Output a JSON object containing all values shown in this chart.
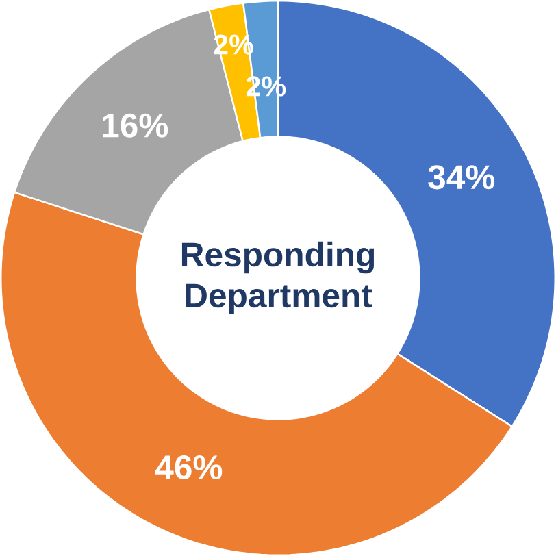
{
  "chart_data": {
    "type": "donut",
    "title": "Responding Department",
    "categories": [
      null,
      null,
      null,
      null,
      null
    ],
    "values": [
      34,
      46,
      16,
      2,
      2
    ],
    "colors": [
      "#4472c4",
      "#ed7d31",
      "#a5a5a5",
      "#ffc000",
      "#5b9bd5"
    ],
    "value_labels": [
      "34%",
      "46%",
      "16%",
      "2%",
      "2%"
    ]
  }
}
